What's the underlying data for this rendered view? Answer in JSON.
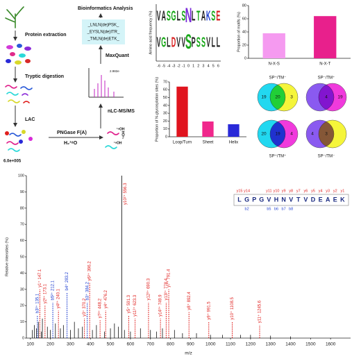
{
  "workflow": {
    "steps": [
      "Protein extraction",
      "Tryptic digestion",
      "LAC"
    ],
    "reaction": "PNGase F(A)",
    "water": "H₂¹⁸O",
    "label18": [
      "¹⁸OH",
      "¹⁸OH",
      "¹⁸OH"
    ],
    "nlc": "nLC-MS/MS",
    "maxquant": "MaxQuant",
    "bioinfo": "Bioinformatics Analysis",
    "peptides": [
      "_LNLN(de)PSK_",
      "_EYSLN(de)ITR_",
      "_TMLN(de)ETK_"
    ],
    "mini_spectrum_label": "2.982e"
  },
  "chart_data": [
    {
      "type": "logo",
      "ylabel": "Amino acid frequency (%)",
      "categories": [
        "-6",
        "-5",
        "-4",
        "-3",
        "-2",
        "-1",
        "0",
        "1",
        "2",
        "3",
        "4",
        "5",
        "6"
      ],
      "rows": [
        [
          "V",
          "A",
          "S",
          "G",
          "L",
          "S",
          "N",
          "L",
          "T",
          "A",
          "K",
          "S",
          "E"
        ],
        [
          "V",
          "G",
          "L",
          "D",
          "V",
          "V",
          "S",
          "P",
          "S",
          "S",
          "V",
          "L",
          "L"
        ]
      ],
      "colors": {
        "A": "#222222",
        "V": "#222222",
        "L": "#222222",
        "G": "#18a818",
        "S": "#18a818",
        "T": "#18a818",
        "N": "#7a2ad8",
        "D": "#d82020",
        "E": "#d82020",
        "K": "#1f3fd0",
        "P": "#222222"
      }
    },
    {
      "type": "bar",
      "ylabel": "Proportion of motifs (%)",
      "categories": [
        "N-X-S",
        "N-X-T"
      ],
      "values": [
        38,
        64
      ],
      "colors": [
        "#f59af0",
        "#e8208c"
      ],
      "ylim": [
        0,
        80
      ],
      "yticks": [
        0,
        20,
        40,
        60,
        80
      ]
    },
    {
      "type": "bar",
      "ylabel": "Proportion of N-glycosylation sites (%)",
      "categories": [
        "Loop/Turn",
        "Sheet",
        "Helix"
      ],
      "values": [
        64,
        19.5,
        16
      ],
      "colors": [
        "#e0141e",
        "#f0288c",
        "#2a2ad8"
      ],
      "ylim": [
        0,
        70
      ],
      "yticks": [
        0,
        10,
        20,
        30,
        40,
        50,
        60,
        70
      ]
    },
    {
      "type": "venn",
      "sets": [
        {
          "label": "SP⁺/TM⁻",
          "counts": [
            19,
            20,
            3
          ],
          "colors": [
            "#22d8f0",
            "#f5f53a"
          ]
        },
        {
          "label": "SP⁻/TM⁺",
          "counts": [
            null,
            4,
            19
          ],
          "colors": [
            "#8a5af0",
            "#f03adc"
          ]
        },
        {
          "label": "SP⁺/TM⁺",
          "counts": [
            20,
            19,
            4
          ],
          "colors": [
            "#22d8f0",
            "#f03adc"
          ]
        },
        {
          "label": "SP⁻/TM⁻",
          "counts": [
            4,
            3,
            null
          ],
          "colors": [
            "#8a5af0",
            "#f5f53a"
          ]
        }
      ]
    },
    {
      "type": "spectrum",
      "ylabel": "Relative intensities (%)",
      "xlabel": "m/z",
      "scale_label": "6.0e+005",
      "xlim": [
        80,
        1700
      ],
      "xticks": [
        100,
        200,
        300,
        400,
        500,
        600,
        700,
        800,
        900,
        1000,
        1100,
        1200,
        1300,
        1400,
        1500,
        1600
      ],
      "ylim": [
        0,
        100
      ],
      "yticks": [
        0,
        10,
        20,
        30,
        40,
        50,
        60,
        70,
        80,
        90,
        100
      ],
      "peaks": {
        "x": [
          110,
          120,
          130,
          140,
          155,
          160,
          185,
          200,
          225,
          250,
          265,
          300,
          320,
          340,
          360,
          410,
          430,
          470,
          500,
          520,
          540,
          570,
          600,
          650,
          700,
          730,
          760,
          820,
          860,
          930,
          1000,
          1060,
          1150,
          1200,
          1300,
          1400
        ],
        "y": [
          5,
          8,
          6,
          10,
          4,
          12,
          7,
          5,
          9,
          6,
          8,
          5,
          10,
          6,
          7,
          5,
          8,
          4,
          6,
          9,
          7,
          5,
          4,
          6,
          5,
          4,
          6,
          5,
          3,
          3,
          2,
          2,
          2,
          2,
          1.5,
          1
        ]
      },
      "annotated": [
        {
          "label": "b3²⁺ 135.1",
          "x": 135.1,
          "y": 14,
          "color": "#1f3fd0"
        },
        {
          "label": "y1⁺ 147.1",
          "x": 147.1,
          "y": 30,
          "color": "#e0201e"
        },
        {
          "label": "y2²⁺ 173.1",
          "x": 173.1,
          "y": 20,
          "color": "#e0201e"
        },
        {
          "label": "b5²⁺ 212.1",
          "x": 212.1,
          "y": 22,
          "color": "#1f3fd0"
        },
        {
          "label": "y4²⁺ 240.1",
          "x": 240.1,
          "y": 17,
          "color": "#e0201e"
        },
        {
          "label": "b4⁺ 283.2",
          "x": 283.2,
          "y": 28,
          "color": "#1f3fd0"
        },
        {
          "label": "y3⁺ 370.2",
          "x": 370.2,
          "y": 12,
          "color": "#e0201e"
        },
        {
          "label": "b3⁺ 384.2",
          "x": 384.2,
          "y": 22,
          "color": "#1f3fd0"
        },
        {
          "label": "y6²⁺ 396.2",
          "x": 396.2,
          "y": 34,
          "color": "#e0201e"
        },
        {
          "label": "y7²⁺ 448.2",
          "x": 448.2,
          "y": 11,
          "color": "#e0201e"
        },
        {
          "label": "y4⁺ 476.2",
          "x": 476.2,
          "y": 17,
          "color": "#e0201e"
        },
        {
          "label": "y10²⁺ 556.3",
          "x": 556.3,
          "y": 100,
          "color": "#e0201e"
        },
        {
          "label": "y5⁺ 591.3",
          "x": 591.3,
          "y": 14,
          "color": "#e0201e"
        },
        {
          "label": "y11²⁺ 623.3",
          "x": 623.3,
          "y": 12,
          "color": "#e0201e"
        },
        {
          "label": "y12²⁺ 690.3",
          "x": 690.3,
          "y": 22,
          "color": "#e0201e"
        },
        {
          "label": "y14²⁺ 749.9",
          "x": 749.9,
          "y": 12,
          "color": "#e0201e"
        },
        {
          "label": "y13²⁺ 778.4",
          "x": 778.4,
          "y": 22,
          "color": "#e0201e"
        },
        {
          "label": "y7⁺ 791.4",
          "x": 791.4,
          "y": 30,
          "color": "#e0201e"
        },
        {
          "label": "y8⁺ 892.4",
          "x": 892.4,
          "y": 16,
          "color": "#e0201e"
        },
        {
          "label": "y9⁺ 991.5",
          "x": 991.5,
          "y": 10,
          "color": "#e0201e"
        },
        {
          "label": "y10⁺ 1108.5",
          "x": 1108.5,
          "y": 10,
          "color": "#e0201e"
        },
        {
          "label": "y11⁺ 1245.6",
          "x": 1245.6,
          "y": 8,
          "color": "#e0201e"
        }
      ],
      "sequence": {
        "residues": [
          "L",
          "G",
          "P",
          "G",
          "V",
          "H",
          "N",
          "V",
          "T",
          "V",
          "D",
          "E",
          "A",
          "E",
          "K"
        ],
        "y_ions": [
          "y15",
          "y14",
          null,
          null,
          "y11",
          "y10",
          "y9",
          "y8",
          "y7",
          "y6",
          "y5",
          "y4",
          "y3",
          "y2",
          "y1"
        ],
        "b_ions": [
          null,
          "b2",
          null,
          null,
          "b5",
          "b6",
          "b7",
          "b8",
          null,
          null,
          null,
          null,
          null,
          null,
          null
        ]
      }
    }
  ]
}
